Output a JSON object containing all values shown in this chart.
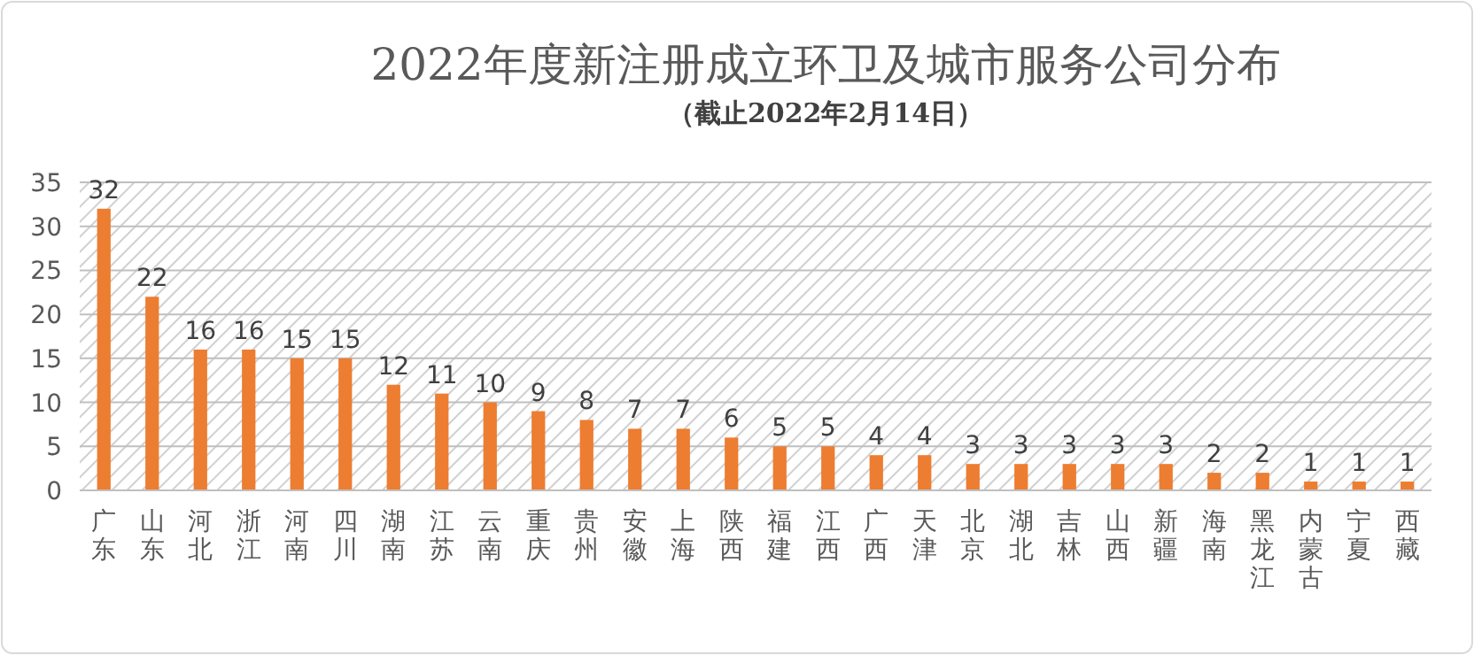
{
  "chart_data": {
    "type": "bar",
    "title": "2022年度新注册成立环卫及城市服务公司分布",
    "subtitle": "（截止2022年2月14日）",
    "categories": [
      "广东",
      "山东",
      "河北",
      "浙江",
      "河南",
      "四川",
      "湖南",
      "江苏",
      "云南",
      "重庆",
      "贵州",
      "安徽",
      "上海",
      "陕西",
      "福建",
      "江西",
      "广西",
      "天津",
      "北京",
      "湖北",
      "吉林",
      "山西",
      "新疆",
      "海南",
      "黑龙江",
      "内蒙古",
      "宁夏",
      "西藏"
    ],
    "values": [
      32,
      22,
      16,
      16,
      15,
      15,
      12,
      11,
      10,
      9,
      8,
      7,
      7,
      6,
      5,
      5,
      4,
      4,
      3,
      3,
      3,
      3,
      3,
      2,
      2,
      1,
      1,
      1
    ],
    "color": "#ed7d31",
    "ylim": [
      0,
      35
    ],
    "yticks": [
      0,
      5,
      10,
      15,
      20,
      25,
      30,
      35
    ],
    "grid": "y",
    "data_labels": true
  }
}
